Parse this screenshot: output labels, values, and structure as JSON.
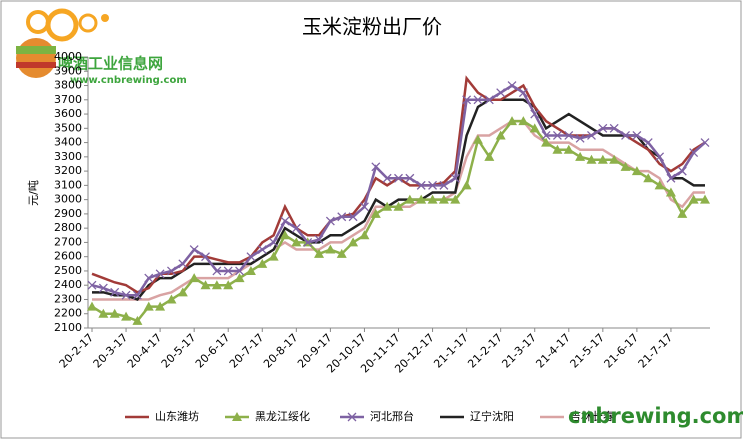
{
  "logo": {
    "name": "啤酒工业信息网",
    "url": "www.cnbrewing.com"
  },
  "watermark": "cnbrewing.com",
  "chart_data": {
    "type": "line",
    "title": "玉米淀粉出厂价",
    "y_label": "元/吨",
    "categories": [
      "20-2-17",
      null,
      null,
      "20-3-17",
      null,
      null,
      "20-4-17",
      null,
      null,
      "20-5-17",
      null,
      null,
      "20-6-17",
      null,
      null,
      "20-7-17",
      null,
      null,
      "20-8-17",
      null,
      null,
      "20-9-17",
      null,
      null,
      "20-10-17",
      null,
      null,
      "20-11-17",
      null,
      null,
      "20-12-17",
      null,
      null,
      "21-1-17",
      null,
      null,
      "21-2-17",
      null,
      null,
      "21-3-17",
      null,
      null,
      "21-4-17",
      null,
      null,
      "21-5-17",
      null,
      null,
      "21-6-17",
      null,
      null,
      "21-7-17",
      null,
      null,
      null
    ],
    "ylim": [
      2100,
      4000
    ],
    "yticks": [
      2100,
      2200,
      2300,
      2400,
      2500,
      2600,
      2700,
      2800,
      2900,
      3000,
      3100,
      3200,
      3300,
      3400,
      3500,
      3600,
      3700,
      3800,
      3900,
      4000
    ],
    "grid": false,
    "series": [
      {
        "name": "山东潍坊",
        "color": "#a23b38",
        "marker": "none",
        "values": [
          2480,
          2450,
          2420,
          2400,
          2350,
          2380,
          2480,
          2480,
          2500,
          2600,
          2600,
          2580,
          2560,
          2560,
          2600,
          2700,
          2750,
          2950,
          2800,
          2750,
          2750,
          2850,
          2880,
          2900,
          3000,
          3150,
          3100,
          3150,
          3100,
          3100,
          3100,
          3120,
          3200,
          3850,
          3750,
          3700,
          3700,
          3750,
          3800,
          3650,
          3550,
          3500,
          3450,
          3450,
          3450,
          3500,
          3500,
          3450,
          3400,
          3350,
          3250,
          3200,
          3250,
          3350,
          3400
        ]
      },
      {
        "name": "黑龙江绥化",
        "color": "#8db04a",
        "marker": "triangle",
        "values": [
          2250,
          2200,
          2200,
          2180,
          2150,
          2250,
          2250,
          2300,
          2350,
          2450,
          2400,
          2400,
          2400,
          2450,
          2500,
          2550,
          2600,
          2750,
          2700,
          2700,
          2620,
          2650,
          2620,
          2700,
          2750,
          2900,
          2950,
          2950,
          3000,
          3000,
          3000,
          3000,
          3000,
          3100,
          3420,
          3300,
          3450,
          3550,
          3550,
          3500,
          3400,
          3350,
          3350,
          3300,
          3280,
          3280,
          3280,
          3230,
          3200,
          3150,
          3100,
          3050,
          2900,
          3000,
          3000
        ]
      },
      {
        "name": "河北邢台",
        "color": "#7e62a3",
        "marker": "x",
        "values": [
          2400,
          2380,
          2350,
          2330,
          2330,
          2450,
          2480,
          2500,
          2550,
          2650,
          2600,
          2500,
          2500,
          2500,
          2600,
          2650,
          2700,
          2850,
          2800,
          2700,
          2720,
          2850,
          2880,
          2880,
          2950,
          3230,
          3150,
          3150,
          3150,
          3100,
          3100,
          3100,
          3150,
          3700,
          3700,
          3700,
          3750,
          3800,
          3750,
          3600,
          3450,
          3450,
          3450,
          3430,
          3450,
          3500,
          3500,
          3450,
          3450,
          3400,
          3300,
          3150,
          3200,
          3330,
          3400
        ]
      },
      {
        "name": "辽宁沈阳",
        "color": "#222222",
        "marker": "none",
        "values": [
          2350,
          2350,
          2330,
          2330,
          2300,
          2400,
          2450,
          2450,
          2500,
          2550,
          2550,
          2550,
          2550,
          2550,
          2550,
          2600,
          2650,
          2800,
          2750,
          2700,
          2700,
          2750,
          2750,
          2800,
          2850,
          3000,
          2950,
          3000,
          3000,
          3000,
          3050,
          3050,
          3050,
          3450,
          3650,
          3700,
          3700,
          3700,
          3700,
          3650,
          3500,
          3550,
          3600,
          3550,
          3500,
          3450,
          3450,
          3450,
          3450,
          3350,
          3300,
          3150,
          3150,
          3100,
          3100
        ]
      },
      {
        "name": "吉林长春",
        "color": "#d9a3a3",
        "marker": "none",
        "values": [
          2300,
          2300,
          2300,
          2300,
          2300,
          2300,
          2330,
          2350,
          2400,
          2450,
          2450,
          2450,
          2450,
          2500,
          2550,
          2600,
          2650,
          2700,
          2650,
          2650,
          2650,
          2700,
          2700,
          2750,
          2800,
          2950,
          2950,
          2950,
          2950,
          3000,
          3000,
          3000,
          3050,
          3300,
          3450,
          3450,
          3500,
          3550,
          3550,
          3450,
          3400,
          3400,
          3400,
          3350,
          3350,
          3350,
          3300,
          3250,
          3200,
          3200,
          3150,
          3000,
          2950,
          3050,
          3050
        ]
      }
    ]
  }
}
